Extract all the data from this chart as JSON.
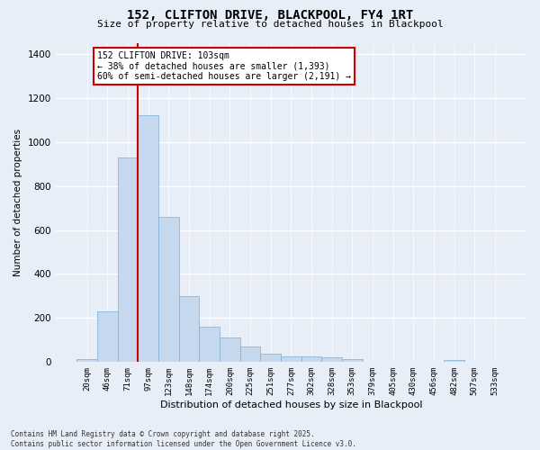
{
  "title_line1": "152, CLIFTON DRIVE, BLACKPOOL, FY4 1RT",
  "title_line2": "Size of property relative to detached houses in Blackpool",
  "xlabel": "Distribution of detached houses by size in Blackpool",
  "ylabel": "Number of detached properties",
  "categories": [
    "20sqm",
    "46sqm",
    "71sqm",
    "97sqm",
    "123sqm",
    "148sqm",
    "174sqm",
    "200sqm",
    "225sqm",
    "251sqm",
    "277sqm",
    "302sqm",
    "328sqm",
    "353sqm",
    "379sqm",
    "405sqm",
    "430sqm",
    "456sqm",
    "482sqm",
    "507sqm",
    "533sqm"
  ],
  "values": [
    15,
    230,
    930,
    1120,
    660,
    300,
    160,
    110,
    70,
    40,
    25,
    25,
    20,
    15,
    0,
    0,
    0,
    0,
    10,
    0,
    0
  ],
  "bar_color": "#c5d8ee",
  "bar_edge_color": "#7aafd4",
  "red_line_color": "#cc0000",
  "red_line_x": 3.0,
  "annotation_line1": "152 CLIFTON DRIVE: 103sqm",
  "annotation_line2": "← 38% of detached houses are smaller (1,393)",
  "annotation_line3": "60% of semi-detached houses are larger (2,191) →",
  "annotation_box_facecolor": "#ffffff",
  "annotation_box_edgecolor": "#cc0000",
  "ylim": [
    0,
    1450
  ],
  "yticks": [
    0,
    200,
    400,
    600,
    800,
    1000,
    1200,
    1400
  ],
  "background_color": "#e8eef8",
  "grid_color": "#ffffff",
  "title_fontsize": 10,
  "subtitle_fontsize": 8,
  "footnote": "Contains HM Land Registry data © Crown copyright and database right 2025.\nContains public sector information licensed under the Open Government Licence v3.0."
}
